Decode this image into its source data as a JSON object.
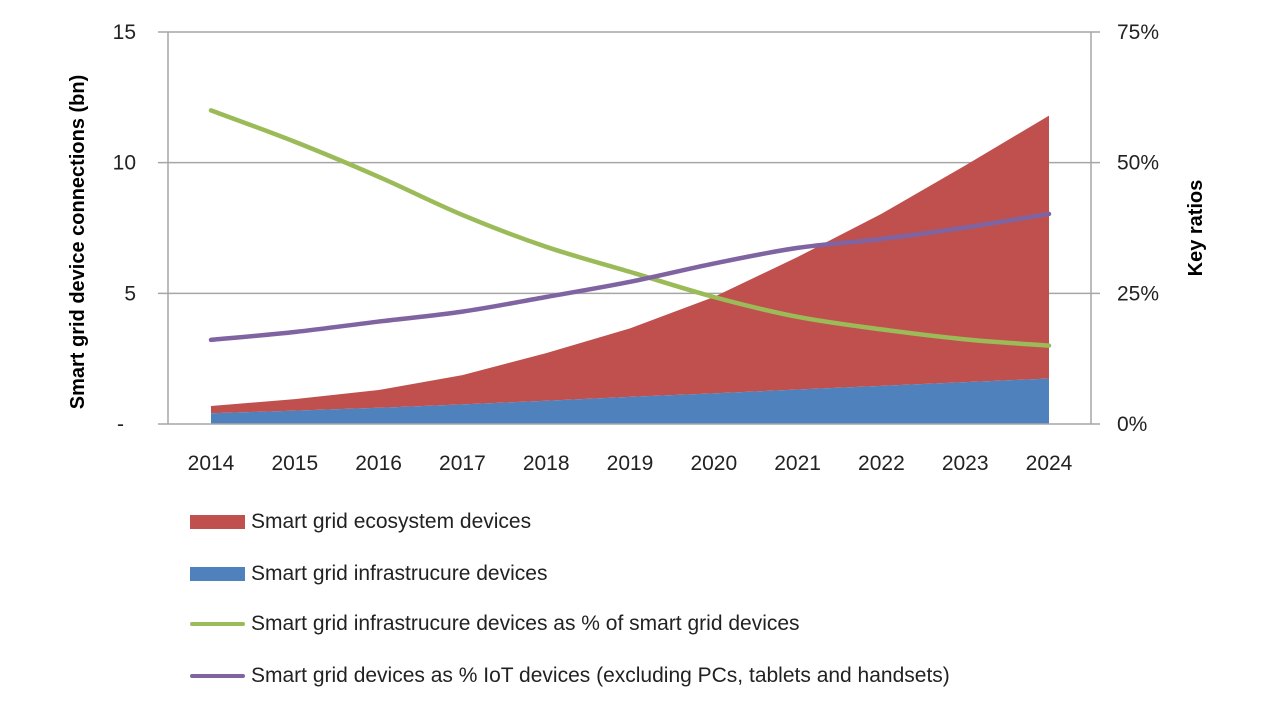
{
  "chart_data": {
    "type": "area",
    "title": "",
    "categories": [
      "2014",
      "2015",
      "2016",
      "2017",
      "2018",
      "2019",
      "2020",
      "2021",
      "2022",
      "2023",
      "2024"
    ],
    "y_left": {
      "label": "Smart grid device connections (bn)",
      "range": [
        0,
        15
      ],
      "ticks": [
        0,
        5,
        10,
        15
      ],
      "tick_labels": [
        "-",
        "5",
        "10",
        "15"
      ]
    },
    "y_right": {
      "label": "Key ratios",
      "range": [
        0,
        75
      ],
      "ticks": [
        0,
        25,
        50,
        75
      ],
      "tick_labels": [
        "0%",
        "25%",
        "50%",
        "75%"
      ]
    },
    "grid": true,
    "legend_position": "bottom",
    "series": [
      {
        "name": "Smart grid ecosystem devices",
        "kind": "stacked-area",
        "axis": "left",
        "color": "#C0504D",
        "values": [
          0.28,
          0.44,
          0.68,
          1.12,
          1.82,
          2.62,
          3.69,
          5.07,
          6.58,
          8.29,
          10.06
        ]
      },
      {
        "name": "Smart grid infrastrucure devices",
        "kind": "stacked-area",
        "axis": "left",
        "color": "#4F81BD",
        "values": [
          0.41,
          0.51,
          0.62,
          0.75,
          0.89,
          1.04,
          1.17,
          1.32,
          1.46,
          1.6,
          1.74
        ]
      },
      {
        "name": "Smart grid infrastrucure devices as % of smart grid devices",
        "kind": "line",
        "axis": "right",
        "color": "#9BBB59",
        "values": [
          60.0,
          54.0,
          47.3,
          40.0,
          33.9,
          29.1,
          24.3,
          20.5,
          18.1,
          16.2,
          15.0
        ]
      },
      {
        "name": "Smart grid devices as % IoT devices (excluding PCs, tablets and handsets)",
        "kind": "line",
        "axis": "right",
        "color": "#8064A2",
        "values": [
          16.1,
          17.6,
          19.6,
          21.5,
          24.3,
          27.2,
          30.7,
          33.7,
          35.4,
          37.6,
          40.2
        ]
      }
    ]
  },
  "legend": {
    "items": [
      {
        "label": "Smart grid ecosystem devices",
        "type": "area",
        "color": "#C0504D"
      },
      {
        "label": "Smart grid infrastrucure devices",
        "type": "area",
        "color": "#4F81BD"
      },
      {
        "label": "Smart grid infrastrucure devices as % of smart grid devices",
        "type": "line",
        "color": "#9BBB59"
      },
      {
        "label": "Smart grid devices as % IoT devices (excluding PCs, tablets and handsets)",
        "type": "line",
        "color": "#8064A2"
      }
    ]
  }
}
